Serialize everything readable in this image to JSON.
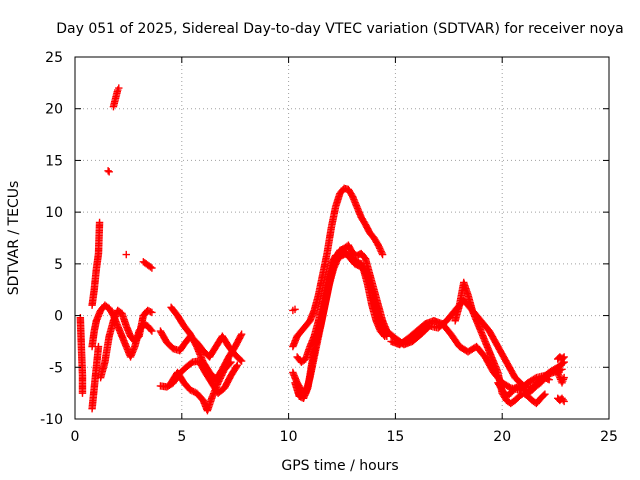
{
  "chart_data": {
    "type": "scatter",
    "title": "Day 051 of 2025, Sidereal Day-to-day VTEC variation (SDTVAR) for receiver noya",
    "xlabel": "GPS time / hours",
    "ylabel": "SDTVAR / TECUs",
    "xlim": [
      0,
      25
    ],
    "ylim": [
      -10,
      25
    ],
    "xticks": [
      0,
      5,
      10,
      15,
      20,
      25
    ],
    "yticks": [
      -10,
      -5,
      0,
      5,
      10,
      15,
      20,
      25
    ],
    "grid": true,
    "marker": "+",
    "color": "#ff0000",
    "segments": [
      [
        [
          0.25,
          -0.2
        ],
        [
          0.3,
          -3.1
        ],
        [
          0.35,
          -5.8
        ],
        [
          0.35,
          -7.5
        ]
      ],
      [
        [
          0.8,
          -9.0
        ],
        [
          0.9,
          -7.0
        ],
        [
          1.0,
          -5.0
        ],
        [
          1.1,
          -3.0
        ]
      ],
      [
        [
          0.8,
          1.0
        ],
        [
          0.9,
          2.5
        ],
        [
          1.0,
          4.5
        ],
        [
          1.1,
          6.0
        ],
        [
          1.15,
          9.0
        ]
      ],
      [
        [
          0.8,
          -3.0
        ],
        [
          0.9,
          -1.5
        ],
        [
          1.0,
          -0.5
        ],
        [
          1.2,
          0.5
        ],
        [
          1.4,
          1.0
        ],
        [
          1.6,
          0.7
        ],
        [
          1.8,
          0.0
        ],
        [
          2.0,
          -1.0
        ],
        [
          2.2,
          -2.0
        ],
        [
          2.4,
          -3.0
        ],
        [
          2.6,
          -4.0
        ],
        [
          2.8,
          -3.0
        ],
        [
          3.0,
          -1.5
        ],
        [
          3.2,
          -0.8
        ],
        [
          3.4,
          -1.0
        ],
        [
          3.6,
          -1.5
        ]
      ],
      [
        [
          1.2,
          -6.0
        ],
        [
          1.4,
          -4.5
        ],
        [
          1.6,
          -2.0
        ],
        [
          1.8,
          -0.5
        ],
        [
          2.0,
          0.5
        ],
        [
          2.2,
          0.2
        ],
        [
          2.4,
          -1.0
        ],
        [
          2.6,
          -2.0
        ],
        [
          2.8,
          -2.5
        ],
        [
          3.0,
          -2.0
        ],
        [
          3.2,
          0.0
        ],
        [
          3.4,
          0.5
        ],
        [
          3.6,
          0.3
        ]
      ],
      [
        [
          1.55,
          14.0
        ],
        [
          1.6,
          13.9
        ]
      ],
      [
        [
          1.8,
          20.2
        ],
        [
          1.9,
          21.0
        ],
        [
          2.0,
          21.8
        ],
        [
          2.05,
          22.0
        ]
      ],
      [
        [
          2.4,
          5.9
        ]
      ],
      [
        [
          3.2,
          5.2
        ],
        [
          3.4,
          4.9
        ],
        [
          3.6,
          4.6
        ]
      ],
      [
        [
          4.0,
          -1.5
        ],
        [
          4.3,
          -2.6
        ],
        [
          4.6,
          -3.2
        ],
        [
          4.9,
          -3.4
        ],
        [
          5.1,
          -2.8
        ],
        [
          5.4,
          -2.0
        ],
        [
          5.7,
          -2.6
        ],
        [
          6.0,
          -3.4
        ],
        [
          6.3,
          -4.0
        ],
        [
          6.6,
          -3.0
        ],
        [
          6.9,
          -2.0
        ],
        [
          7.2,
          -3.0
        ],
        [
          7.5,
          -3.8
        ],
        [
          7.8,
          -4.4
        ]
      ],
      [
        [
          4.5,
          0.8
        ],
        [
          4.8,
          0.0
        ],
        [
          5.1,
          -1.0
        ],
        [
          5.4,
          -1.8
        ],
        [
          5.7,
          -3.0
        ],
        [
          6.0,
          -4.5
        ],
        [
          6.3,
          -5.5
        ],
        [
          6.6,
          -6.2
        ],
        [
          6.9,
          -5.2
        ],
        [
          7.2,
          -4.0
        ],
        [
          7.5,
          -3.0
        ],
        [
          7.8,
          -1.8
        ]
      ],
      [
        [
          4.0,
          -6.8
        ],
        [
          4.3,
          -6.9
        ],
        [
          4.6,
          -6.5
        ],
        [
          4.9,
          -5.6
        ],
        [
          5.2,
          -5.0
        ],
        [
          5.5,
          -4.5
        ],
        [
          5.8,
          -4.4
        ],
        [
          6.1,
          -5.5
        ],
        [
          6.4,
          -6.5
        ],
        [
          6.7,
          -7.5
        ],
        [
          7.0,
          -7.0
        ],
        [
          7.3,
          -5.8
        ],
        [
          7.6,
          -4.8
        ]
      ],
      [
        [
          4.5,
          -6.5
        ],
        [
          4.8,
          -5.5
        ],
        [
          5.1,
          -6.5
        ],
        [
          5.4,
          -7.2
        ],
        [
          5.7,
          -7.5
        ],
        [
          6.0,
          -8.2
        ],
        [
          6.2,
          -9.2
        ],
        [
          6.4,
          -8.0
        ],
        [
          6.7,
          -6.5
        ],
        [
          7.0,
          -5.2
        ],
        [
          7.3,
          -4.5
        ]
      ],
      [
        [
          10.2,
          0.5
        ],
        [
          10.3,
          0.6
        ]
      ],
      [
        [
          10.2,
          -3.0
        ],
        [
          10.4,
          -2.0
        ],
        [
          10.6,
          -1.5
        ],
        [
          10.8,
          -1.0
        ],
        [
          11.0,
          -0.5
        ],
        [
          11.2,
          0.5
        ],
        [
          11.4,
          2.0
        ],
        [
          11.6,
          4.0
        ],
        [
          11.8,
          6.0
        ],
        [
          12.0,
          8.5
        ],
        [
          12.2,
          10.5
        ],
        [
          12.4,
          11.8
        ],
        [
          12.6,
          12.3
        ],
        [
          12.8,
          12.2
        ],
        [
          13.0,
          11.5
        ],
        [
          13.2,
          10.5
        ],
        [
          13.4,
          9.5
        ],
        [
          13.6,
          8.8
        ],
        [
          13.8,
          8.0
        ],
        [
          14.0,
          7.5
        ],
        [
          14.2,
          6.8
        ],
        [
          14.4,
          5.9
        ]
      ],
      [
        [
          10.2,
          -5.5
        ],
        [
          10.4,
          -6.5
        ],
        [
          10.6,
          -7.2
        ],
        [
          10.8,
          -7.5
        ],
        [
          11.0,
          -6.0
        ],
        [
          11.2,
          -4.0
        ],
        [
          11.4,
          -2.0
        ],
        [
          11.6,
          0.0
        ],
        [
          11.8,
          2.0
        ],
        [
          12.0,
          4.0
        ],
        [
          12.2,
          5.5
        ],
        [
          12.4,
          6.3
        ],
        [
          12.6,
          6.5
        ],
        [
          12.8,
          6.8
        ],
        [
          13.0,
          6.0
        ],
        [
          13.2,
          5.8
        ],
        [
          13.4,
          6.0
        ],
        [
          13.6,
          5.5
        ],
        [
          13.8,
          4.0
        ],
        [
          14.0,
          2.5
        ],
        [
          14.2,
          1.0
        ],
        [
          14.4,
          -0.5
        ],
        [
          14.6,
          -1.5
        ]
      ],
      [
        [
          10.3,
          -6.5
        ],
        [
          10.5,
          -7.8
        ],
        [
          10.7,
          -8.0
        ],
        [
          10.9,
          -7.0
        ],
        [
          11.1,
          -4.5
        ],
        [
          11.3,
          -2.5
        ],
        [
          11.5,
          -1.0
        ],
        [
          11.7,
          1.0
        ],
        [
          11.9,
          3.0
        ],
        [
          12.1,
          4.5
        ],
        [
          12.3,
          5.5
        ],
        [
          12.5,
          5.8
        ],
        [
          12.7,
          6.0
        ],
        [
          12.9,
          5.5
        ],
        [
          13.1,
          5.0
        ],
        [
          13.3,
          4.8
        ],
        [
          13.5,
          4.5
        ],
        [
          13.7,
          3.0
        ],
        [
          13.9,
          1.0
        ],
        [
          14.1,
          -0.5
        ],
        [
          14.3,
          -1.5
        ],
        [
          14.5,
          -2.0
        ]
      ],
      [
        [
          10.4,
          -4.0
        ],
        [
          10.6,
          -4.5
        ],
        [
          10.8,
          -4.2
        ],
        [
          11.0,
          -3.0
        ],
        [
          11.2,
          -2.0
        ],
        [
          11.4,
          -0.5
        ],
        [
          11.6,
          1.5
        ],
        [
          11.8,
          3.5
        ],
        [
          12.0,
          5.0
        ],
        [
          12.2,
          5.8
        ],
        [
          12.4,
          6.0
        ],
        [
          12.6,
          6.2
        ],
        [
          12.8,
          5.8
        ],
        [
          13.0,
          5.5
        ],
        [
          13.2,
          5.2
        ],
        [
          13.4,
          5.0
        ],
        [
          13.6,
          4.2
        ],
        [
          13.8,
          3.0
        ],
        [
          14.0,
          1.5
        ],
        [
          14.2,
          0.2
        ],
        [
          14.4,
          -1.0
        ],
        [
          14.6,
          -2.0
        ]
      ],
      [
        [
          14.6,
          -1.5
        ],
        [
          15.0,
          -2.2
        ],
        [
          15.4,
          -2.8
        ],
        [
          15.8,
          -2.5
        ],
        [
          16.2,
          -1.8
        ],
        [
          16.6,
          -1.0
        ],
        [
          17.0,
          -1.2
        ],
        [
          17.4,
          -0.5
        ],
        [
          17.8,
          0.5
        ],
        [
          18.2,
          1.5
        ],
        [
          18.6,
          0.5
        ],
        [
          19.0,
          -0.5
        ],
        [
          19.4,
          -1.5
        ],
        [
          19.8,
          -3.0
        ],
        [
          20.2,
          -4.5
        ],
        [
          20.6,
          -6.0
        ],
        [
          21.0,
          -6.8
        ],
        [
          21.4,
          -7.0
        ],
        [
          21.8,
          -6.2
        ],
        [
          22.2,
          -5.5
        ],
        [
          22.6,
          -5.0
        ],
        [
          22.9,
          -4.5
        ]
      ],
      [
        [
          14.8,
          -2.5
        ],
        [
          15.2,
          -2.8
        ],
        [
          15.6,
          -2.2
        ],
        [
          16.0,
          -1.5
        ],
        [
          16.4,
          -0.8
        ],
        [
          16.8,
          -0.5
        ],
        [
          17.2,
          -0.8
        ],
        [
          17.6,
          -1.8
        ],
        [
          18.0,
          -3.0
        ],
        [
          18.4,
          -3.5
        ],
        [
          18.8,
          -3.0
        ],
        [
          19.2,
          -4.0
        ],
        [
          19.6,
          -5.5
        ],
        [
          20.0,
          -6.5
        ],
        [
          20.4,
          -7.0
        ],
        [
          20.8,
          -7.2
        ],
        [
          21.2,
          -6.5
        ],
        [
          21.6,
          -6.0
        ],
        [
          22.0,
          -5.8
        ],
        [
          22.4,
          -5.5
        ],
        [
          22.8,
          -5.2
        ]
      ],
      [
        [
          17.8,
          -0.5
        ],
        [
          18.0,
          1.0
        ],
        [
          18.2,
          3.2
        ],
        [
          18.4,
          2.0
        ],
        [
          18.6,
          0.5
        ],
        [
          18.8,
          -0.5
        ],
        [
          19.0,
          -1.5
        ],
        [
          19.2,
          -2.5
        ],
        [
          19.4,
          -3.5
        ],
        [
          19.6,
          -4.5
        ],
        [
          19.8,
          -5.5
        ],
        [
          20.0,
          -7.5
        ],
        [
          20.2,
          -8.2
        ],
        [
          20.4,
          -8.5
        ],
        [
          20.6,
          -8.2
        ],
        [
          20.8,
          -7.8
        ],
        [
          21.0,
          -7.5
        ],
        [
          21.2,
          -7.8
        ],
        [
          21.4,
          -8.2
        ],
        [
          21.6,
          -8.5
        ],
        [
          21.8,
          -8.0
        ],
        [
          22.0,
          -7.6
        ]
      ],
      [
        [
          19.8,
          -6.5
        ],
        [
          20.0,
          -7.2
        ],
        [
          20.2,
          -7.8
        ],
        [
          20.4,
          -7.5
        ],
        [
          20.6,
          -7.0
        ],
        [
          20.8,
          -6.8
        ],
        [
          21.0,
          -7.0
        ],
        [
          21.2,
          -7.5
        ],
        [
          21.4,
          -7.2
        ],
        [
          21.6,
          -6.8
        ],
        [
          21.8,
          -6.5
        ],
        [
          22.0,
          -6.0
        ],
        [
          22.2,
          -6.2
        ]
      ],
      [
        [
          22.6,
          -4.2
        ],
        [
          22.7,
          -4.0
        ],
        [
          22.8,
          -4.2
        ],
        [
          22.9,
          -4.0
        ]
      ],
      [
        [
          22.6,
          -5.5
        ],
        [
          22.7,
          -6.0
        ],
        [
          22.8,
          -6.5
        ],
        [
          22.9,
          -6.0
        ]
      ],
      [
        [
          22.6,
          -8.0
        ],
        [
          22.7,
          -8.2
        ],
        [
          22.8,
          -8.0
        ],
        [
          22.9,
          -8.3
        ]
      ]
    ]
  }
}
